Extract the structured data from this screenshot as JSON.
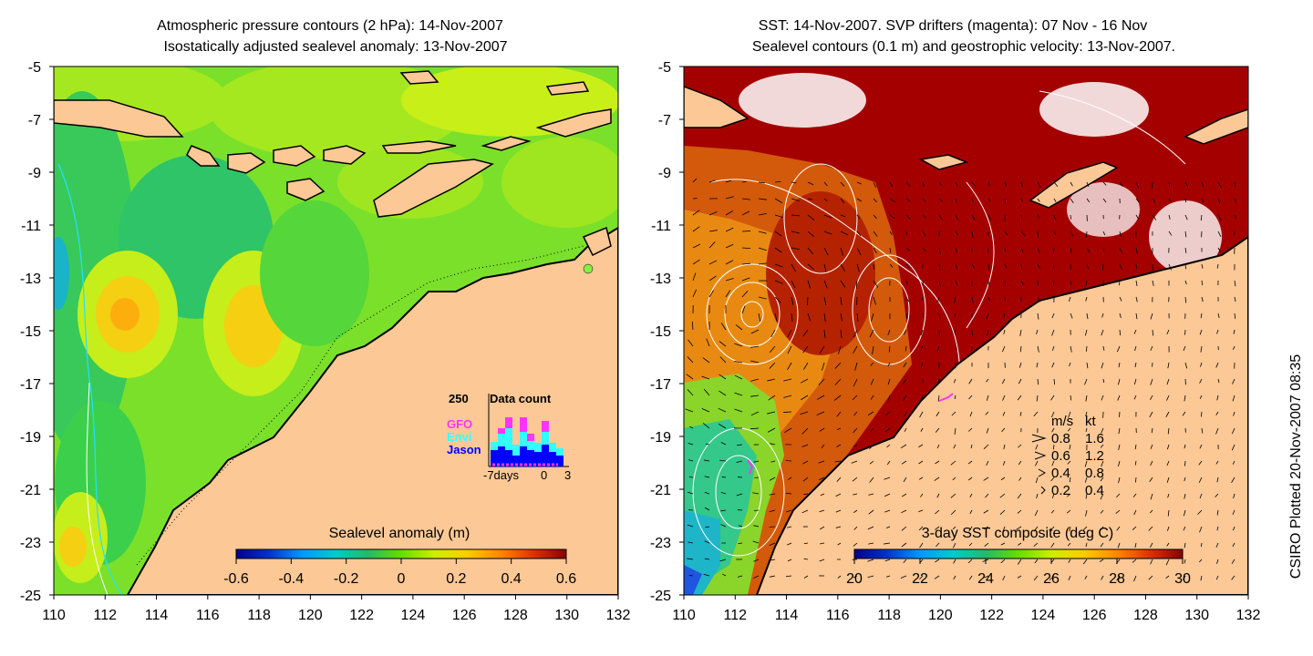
{
  "left_panel": {
    "title_line1": "Atmospheric pressure contours (2 hPa): 14-Nov-2007",
    "title_line2": "Isostatically adjusted sealevel anomaly: 13-Nov-2007",
    "colorbar": {
      "label": "Sealevel anomaly (m)",
      "range": [
        -0.6,
        0.6
      ],
      "ticks": [
        "-0.6",
        "-0.4",
        "-0.2",
        "0",
        "0.2",
        "0.4",
        "0.6"
      ],
      "colormap": [
        "#00008b",
        "#0033cc",
        "#0099ff",
        "#00cccc",
        "#22bb66",
        "#66dd00",
        "#ccee00",
        "#ffcc00",
        "#ff8800",
        "#dd3300",
        "#880000"
      ]
    },
    "data_count_inset": {
      "title": "Data count",
      "ymax_label": "250",
      "legend": [
        {
          "name": "GFO",
          "color": "#ff33ff"
        },
        {
          "name": "Envi",
          "color": "#33ffff"
        },
        {
          "name": "Jason",
          "color": "#0000ff"
        }
      ],
      "x_labels": [
        "-7days",
        "0",
        "3"
      ]
    }
  },
  "right_panel": {
    "title_line1": "SST: 14-Nov-2007. SVP drifters (magenta): 07 Nov - 16 Nov",
    "title_line2": "Sealevel contours (0.1 m) and geostrophic velocity: 13-Nov-2007.",
    "colorbar": {
      "label": "3-day SST composite (deg C)",
      "range": [
        20,
        30
      ],
      "ticks": [
        "20",
        "22",
        "24",
        "26",
        "28",
        "30"
      ],
      "colormap": [
        "#00008b",
        "#0033cc",
        "#0099ff",
        "#00cccc",
        "#22bb66",
        "#66dd00",
        "#ccee00",
        "#ffcc00",
        "#ff8800",
        "#dd3300",
        "#880000"
      ]
    },
    "velocity_legend": {
      "header_ms": "m/s",
      "header_kt": "kt",
      "rows": [
        {
          "ms": "0.8",
          "kt": "1.6"
        },
        {
          "ms": "0.6",
          "kt": "1.2"
        },
        {
          "ms": "0.4",
          "kt": "0.8"
        },
        {
          "ms": "0.2",
          "kt": "0.4"
        }
      ]
    }
  },
  "axes": {
    "lon_labels": [
      "110",
      "112",
      "114",
      "116",
      "118",
      "120",
      "122",
      "124",
      "126",
      "128",
      "130",
      "132"
    ],
    "lat_labels": [
      "-5",
      "-7",
      "-9",
      "-11",
      "-13",
      "-15",
      "-17",
      "-19",
      "-21",
      "-23",
      "-25"
    ]
  },
  "credit": "CSIRO Plotted 20-Nov-2007 08:35",
  "colors": {
    "land": "#fbc896",
    "ocean_sla": "#66dd22",
    "ocean_sst": "#a50000",
    "sst_mid": "#e07010"
  }
}
